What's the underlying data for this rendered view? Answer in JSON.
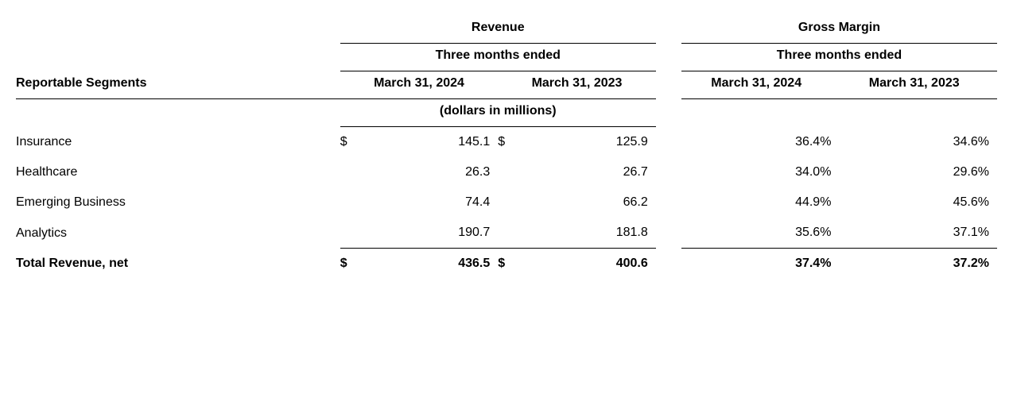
{
  "title_segments": "Reportable Segments",
  "group_revenue": "Revenue",
  "group_gross_margin": "Gross Margin",
  "period_label": "Three months ended",
  "col_2024": "March 31, 2024",
  "col_2023": "March 31, 2023",
  "units_label": "(dollars in millions)",
  "rows": [
    {
      "label": "Insurance",
      "rev2024": "145.1",
      "rev2023": "125.9",
      "gm2024": "36.4%",
      "gm2023": "34.6%",
      "sym": "$"
    },
    {
      "label": "Healthcare",
      "rev2024": "26.3",
      "rev2023": "26.7",
      "gm2024": "34.0%",
      "gm2023": "29.6%",
      "sym": ""
    },
    {
      "label": "Emerging Business",
      "rev2024": "74.4",
      "rev2023": "66.2",
      "gm2024": "44.9%",
      "gm2023": "45.6%",
      "sym": ""
    },
    {
      "label": "Analytics",
      "rev2024": "190.7",
      "rev2023": "181.8",
      "gm2024": "35.6%",
      "gm2023": "37.1%",
      "sym": ""
    }
  ],
  "total": {
    "label": "Total Revenue, net",
    "rev2024": "436.5",
    "rev2023": "400.6",
    "gm2024": "37.4%",
    "gm2023": "37.2%",
    "sym": "$"
  },
  "style": {
    "font_family": "Arial, Helvetica, sans-serif",
    "font_size_body": 16,
    "font_size_header": 16,
    "font_weight_header": 700,
    "font_weight_total": 700,
    "text_color": "#000000",
    "background_color": "#ffffff",
    "border_color": "#000000",
    "border_width": 1.5,
    "row_vpad": 10,
    "col_widths": {
      "label": 380,
      "sym": 30,
      "val": 145,
      "gap": 30,
      "pct": 175
    },
    "alignment": {
      "label": "left",
      "values": "right",
      "headers": "center"
    }
  }
}
